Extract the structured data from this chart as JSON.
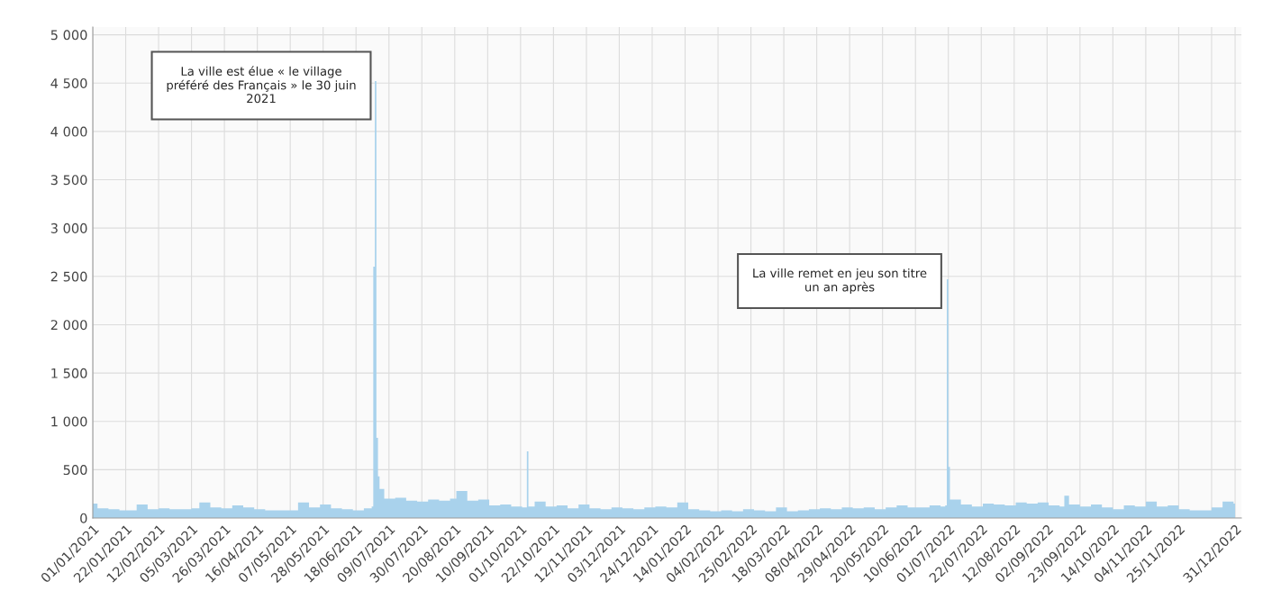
{
  "chart_data": {
    "type": "area",
    "color": "#a9d2ec",
    "x": [
      "2021-01-01",
      "2021-01-04",
      "2021-01-11",
      "2021-01-18",
      "2021-01-25",
      "2021-01-29",
      "2021-02-05",
      "2021-02-12",
      "2021-02-19",
      "2021-02-26",
      "2021-03-05",
      "2021-03-10",
      "2021-03-17",
      "2021-03-24",
      "2021-03-31",
      "2021-04-07",
      "2021-04-14",
      "2021-04-21",
      "2021-04-28",
      "2021-05-05",
      "2021-05-12",
      "2021-05-19",
      "2021-05-26",
      "2021-06-02",
      "2021-06-09",
      "2021-06-16",
      "2021-06-23",
      "2021-06-28",
      "2021-06-29",
      "2021-06-30",
      "2021-07-01",
      "2021-07-02",
      "2021-07-03",
      "2021-07-06",
      "2021-07-13",
      "2021-07-20",
      "2021-07-27",
      "2021-08-03",
      "2021-08-10",
      "2021-08-17",
      "2021-08-21",
      "2021-08-28",
      "2021-09-04",
      "2021-09-11",
      "2021-09-18",
      "2021-09-25",
      "2021-10-02",
      "2021-10-05",
      "2021-10-06",
      "2021-10-10",
      "2021-10-17",
      "2021-10-24",
      "2021-10-31",
      "2021-11-07",
      "2021-11-14",
      "2021-11-21",
      "2021-11-28",
      "2021-12-05",
      "2021-12-12",
      "2021-12-19",
      "2021-12-26",
      "2022-01-02",
      "2022-01-09",
      "2022-01-16",
      "2022-01-23",
      "2022-01-30",
      "2022-02-06",
      "2022-02-13",
      "2022-02-20",
      "2022-02-27",
      "2022-03-06",
      "2022-03-13",
      "2022-03-20",
      "2022-03-27",
      "2022-04-03",
      "2022-04-10",
      "2022-04-17",
      "2022-04-24",
      "2022-05-01",
      "2022-05-08",
      "2022-05-15",
      "2022-05-22",
      "2022-05-29",
      "2022-06-05",
      "2022-06-12",
      "2022-06-19",
      "2022-06-26",
      "2022-06-29",
      "2022-06-30",
      "2022-07-01",
      "2022-07-02",
      "2022-07-09",
      "2022-07-16",
      "2022-07-23",
      "2022-07-30",
      "2022-08-06",
      "2022-08-13",
      "2022-08-20",
      "2022-08-27",
      "2022-09-03",
      "2022-09-10",
      "2022-09-13",
      "2022-09-16",
      "2022-09-23",
      "2022-09-30",
      "2022-10-07",
      "2022-10-14",
      "2022-10-21",
      "2022-10-28",
      "2022-11-04",
      "2022-11-11",
      "2022-11-18",
      "2022-11-25",
      "2022-12-02",
      "2022-12-09",
      "2022-12-16",
      "2022-12-23",
      "2022-12-30",
      "2022-12-31"
    ],
    "values": [
      150,
      100,
      90,
      80,
      80,
      140,
      90,
      100,
      90,
      90,
      100,
      160,
      110,
      100,
      130,
      110,
      90,
      80,
      80,
      80,
      160,
      110,
      140,
      100,
      90,
      80,
      100,
      120,
      2600,
      4520,
      830,
      430,
      300,
      200,
      210,
      180,
      170,
      190,
      180,
      200,
      280,
      180,
      190,
      130,
      140,
      120,
      110,
      690,
      120,
      170,
      120,
      130,
      100,
      140,
      100,
      90,
      110,
      100,
      90,
      110,
      120,
      110,
      160,
      90,
      80,
      70,
      80,
      70,
      90,
      80,
      70,
      110,
      70,
      80,
      90,
      100,
      90,
      110,
      100,
      110,
      90,
      110,
      130,
      110,
      110,
      130,
      120,
      130,
      2470,
      530,
      190,
      140,
      120,
      150,
      140,
      130,
      160,
      150,
      160,
      130,
      120,
      230,
      140,
      120,
      140,
      110,
      90,
      130,
      120,
      170,
      120,
      130,
      90,
      80,
      80,
      110,
      170,
      150,
      200
    ],
    "xlim": [
      "2021-01-01",
      "2023-01-04"
    ],
    "xticks": [
      {
        "value": "2021-01-01",
        "label": "01/01/2021"
      },
      {
        "value": "2021-01-22",
        "label": "22/01/2021"
      },
      {
        "value": "2021-02-12",
        "label": "12/02/2021"
      },
      {
        "value": "2021-03-05",
        "label": "05/03/2021"
      },
      {
        "value": "2021-03-26",
        "label": "26/03/2021"
      },
      {
        "value": "2021-04-16",
        "label": "16/04/2021"
      },
      {
        "value": "2021-05-07",
        "label": "07/05/2021"
      },
      {
        "value": "2021-05-28",
        "label": "28/05/2021"
      },
      {
        "value": "2021-06-18",
        "label": "18/06/2021"
      },
      {
        "value": "2021-07-09",
        "label": "09/07/2021"
      },
      {
        "value": "2021-07-30",
        "label": "30/07/2021"
      },
      {
        "value": "2021-08-20",
        "label": "20/08/2021"
      },
      {
        "value": "2021-09-10",
        "label": "10/09/2021"
      },
      {
        "value": "2021-10-01",
        "label": "01/10/2021"
      },
      {
        "value": "2021-10-22",
        "label": "22/10/2021"
      },
      {
        "value": "2021-11-12",
        "label": "12/11/2021"
      },
      {
        "value": "2021-12-03",
        "label": "03/12/2021"
      },
      {
        "value": "2021-12-24",
        "label": "24/12/2021"
      },
      {
        "value": "2022-01-14",
        "label": "14/01/2022"
      },
      {
        "value": "2022-02-04",
        "label": "04/02/2022"
      },
      {
        "value": "2022-02-25",
        "label": "25/02/2022"
      },
      {
        "value": "2022-03-18",
        "label": "18/03/2022"
      },
      {
        "value": "2022-04-08",
        "label": "08/04/2022"
      },
      {
        "value": "2022-04-29",
        "label": "29/04/2022"
      },
      {
        "value": "2022-05-20",
        "label": "20/05/2022"
      },
      {
        "value": "2022-06-10",
        "label": "10/06/2022"
      },
      {
        "value": "2022-07-01",
        "label": "01/07/2022"
      },
      {
        "value": "2022-07-22",
        "label": "22/07/2022"
      },
      {
        "value": "2022-08-12",
        "label": "12/08/2022"
      },
      {
        "value": "2022-09-02",
        "label": "02/09/2022"
      },
      {
        "value": "2022-09-23",
        "label": "23/09/2022"
      },
      {
        "value": "2022-10-14",
        "label": "14/10/2022"
      },
      {
        "value": "2022-11-04",
        "label": "04/11/2022"
      },
      {
        "value": "2022-11-25",
        "label": "25/11/2022"
      },
      {
        "value": "2022-12-16",
        "label": null
      },
      {
        "value": "2022-12-31",
        "label": "31/12/2022"
      }
    ],
    "ylim": [
      0,
      5080
    ],
    "yticks": [
      0,
      500,
      {
        "value": 1000,
        "label": "1 000"
      },
      {
        "value": 1500,
        "label": "1 500"
      },
      {
        "value": 2000,
        "label": "2 000"
      },
      {
        "value": 2500,
        "label": "2 500"
      },
      {
        "value": 3000,
        "label": "3 000"
      },
      {
        "value": 3500,
        "label": "3 500"
      },
      {
        "value": 4000,
        "label": "4 000"
      },
      {
        "value": 4500,
        "label": "4 500"
      },
      {
        "value": 5000,
        "label": "5 000"
      }
    ],
    "grid": true,
    "annotations": [
      "La ville est élue « le village préféré des Français » le 30 juin 2021",
      "La ville remet en jeu son titre un an après"
    ]
  }
}
